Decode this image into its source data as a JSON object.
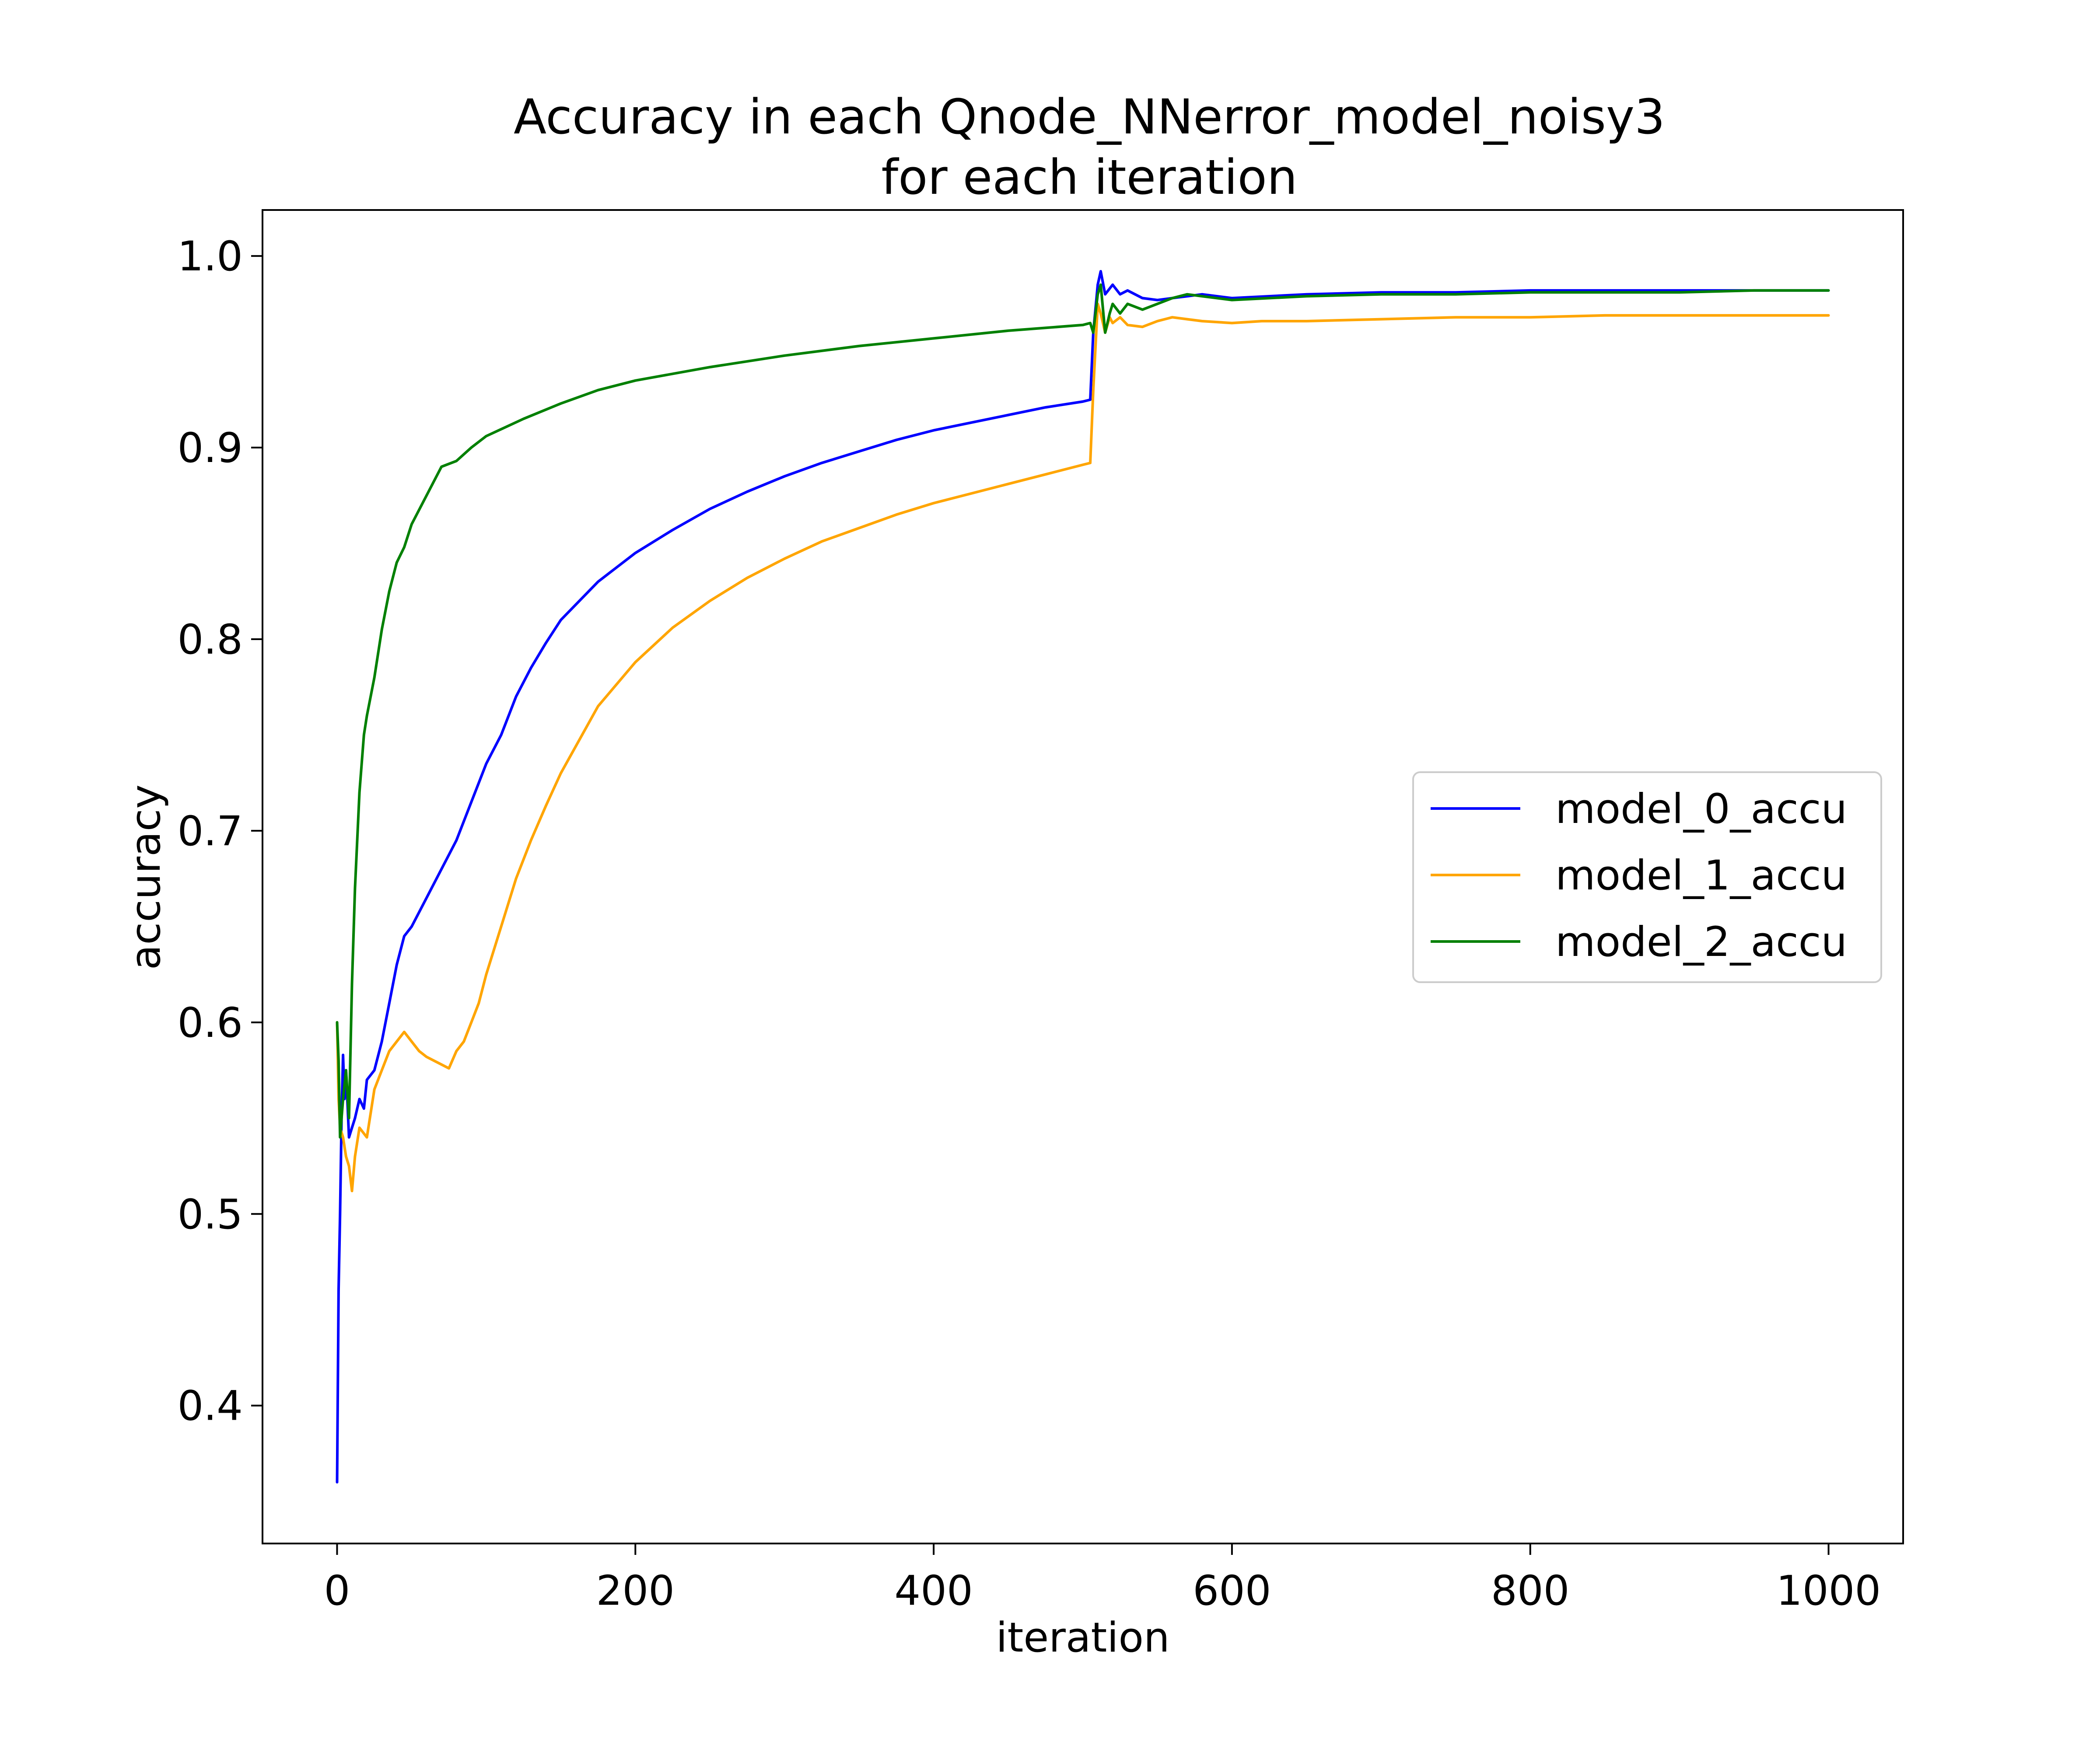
{
  "chart_data": {
    "type": "line",
    "title": [
      "Accuracy in each Qnode_NNerror_model_noisy3",
      "for each iteration"
    ],
    "xlabel": "iteration",
    "ylabel": "accuracy",
    "xlim": [
      -50,
      1050
    ],
    "ylim": [
      0.328,
      1.024
    ],
    "xticks": [
      0,
      200,
      400,
      600,
      800,
      1000
    ],
    "yticks": [
      0.4,
      0.5,
      0.6,
      0.7,
      0.8,
      0.9,
      1.0
    ],
    "xtick_labels": [
      "0",
      "200",
      "400",
      "600",
      "800",
      "1000"
    ],
    "ytick_labels": [
      "0.4",
      "0.5",
      "0.6",
      "0.7",
      "0.8",
      "0.9",
      "1.0"
    ],
    "grid": false,
    "legend_position": "center-right",
    "series": [
      {
        "name": "model_0_accu",
        "color": "#0000ff",
        "points": [
          [
            0,
            0.36
          ],
          [
            1,
            0.46
          ],
          [
            2,
            0.5
          ],
          [
            3,
            0.55
          ],
          [
            4,
            0.583
          ],
          [
            5,
            0.56
          ],
          [
            6,
            0.575
          ],
          [
            8,
            0.54
          ],
          [
            10,
            0.545
          ],
          [
            12,
            0.55
          ],
          [
            15,
            0.56
          ],
          [
            18,
            0.555
          ],
          [
            20,
            0.57
          ],
          [
            25,
            0.575
          ],
          [
            30,
            0.59
          ],
          [
            35,
            0.61
          ],
          [
            40,
            0.63
          ],
          [
            45,
            0.645
          ],
          [
            50,
            0.65
          ],
          [
            60,
            0.665
          ],
          [
            70,
            0.68
          ],
          [
            80,
            0.695
          ],
          [
            90,
            0.715
          ],
          [
            100,
            0.735
          ],
          [
            110,
            0.75
          ],
          [
            120,
            0.77
          ],
          [
            130,
            0.785
          ],
          [
            140,
            0.798
          ],
          [
            150,
            0.81
          ],
          [
            175,
            0.83
          ],
          [
            200,
            0.845
          ],
          [
            225,
            0.857
          ],
          [
            250,
            0.868
          ],
          [
            275,
            0.877
          ],
          [
            300,
            0.885
          ],
          [
            325,
            0.892
          ],
          [
            350,
            0.898
          ],
          [
            375,
            0.904
          ],
          [
            400,
            0.909
          ],
          [
            425,
            0.913
          ],
          [
            450,
            0.917
          ],
          [
            475,
            0.921
          ],
          [
            500,
            0.924
          ],
          [
            505,
            0.925
          ],
          [
            507,
            0.96
          ],
          [
            510,
            0.985
          ],
          [
            512,
            0.992
          ],
          [
            515,
            0.98
          ],
          [
            520,
            0.985
          ],
          [
            525,
            0.98
          ],
          [
            530,
            0.982
          ],
          [
            540,
            0.978
          ],
          [
            550,
            0.977
          ],
          [
            560,
            0.978
          ],
          [
            570,
            0.979
          ],
          [
            580,
            0.98
          ],
          [
            600,
            0.978
          ],
          [
            650,
            0.98
          ],
          [
            700,
            0.981
          ],
          [
            750,
            0.981
          ],
          [
            800,
            0.982
          ],
          [
            850,
            0.982
          ],
          [
            900,
            0.982
          ],
          [
            950,
            0.982
          ],
          [
            1000,
            0.982
          ]
        ]
      },
      {
        "name": "model_1_accu",
        "color": "#ffa500",
        "points": [
          [
            0,
            0.6
          ],
          [
            1,
            0.56
          ],
          [
            2,
            0.545
          ],
          [
            4,
            0.54
          ],
          [
            6,
            0.53
          ],
          [
            8,
            0.525
          ],
          [
            10,
            0.512
          ],
          [
            12,
            0.53
          ],
          [
            15,
            0.545
          ],
          [
            20,
            0.54
          ],
          [
            25,
            0.565
          ],
          [
            30,
            0.575
          ],
          [
            35,
            0.585
          ],
          [
            40,
            0.59
          ],
          [
            45,
            0.595
          ],
          [
            50,
            0.59
          ],
          [
            55,
            0.585
          ],
          [
            60,
            0.582
          ],
          [
            65,
            0.58
          ],
          [
            70,
            0.578
          ],
          [
            75,
            0.576
          ],
          [
            80,
            0.585
          ],
          [
            85,
            0.59
          ],
          [
            90,
            0.6
          ],
          [
            95,
            0.61
          ],
          [
            100,
            0.625
          ],
          [
            110,
            0.65
          ],
          [
            120,
            0.675
          ],
          [
            130,
            0.695
          ],
          [
            140,
            0.713
          ],
          [
            150,
            0.73
          ],
          [
            175,
            0.765
          ],
          [
            200,
            0.788
          ],
          [
            225,
            0.806
          ],
          [
            250,
            0.82
          ],
          [
            275,
            0.832
          ],
          [
            300,
            0.842
          ],
          [
            325,
            0.851
          ],
          [
            350,
            0.858
          ],
          [
            375,
            0.865
          ],
          [
            400,
            0.871
          ],
          [
            425,
            0.876
          ],
          [
            450,
            0.881
          ],
          [
            475,
            0.886
          ],
          [
            500,
            0.891
          ],
          [
            505,
            0.892
          ],
          [
            507,
            0.93
          ],
          [
            510,
            0.975
          ],
          [
            512,
            0.97
          ],
          [
            515,
            0.96
          ],
          [
            518,
            0.968
          ],
          [
            520,
            0.965
          ],
          [
            525,
            0.968
          ],
          [
            530,
            0.964
          ],
          [
            540,
            0.963
          ],
          [
            550,
            0.966
          ],
          [
            560,
            0.968
          ],
          [
            570,
            0.967
          ],
          [
            580,
            0.966
          ],
          [
            600,
            0.965
          ],
          [
            620,
            0.966
          ],
          [
            650,
            0.966
          ],
          [
            700,
            0.967
          ],
          [
            750,
            0.968
          ],
          [
            800,
            0.968
          ],
          [
            850,
            0.969
          ],
          [
            900,
            0.969
          ],
          [
            950,
            0.969
          ],
          [
            1000,
            0.969
          ]
        ]
      },
      {
        "name": "model_2_accu",
        "color": "#008000",
        "points": [
          [
            0,
            0.6
          ],
          [
            1,
            0.58
          ],
          [
            2,
            0.54
          ],
          [
            4,
            0.56
          ],
          [
            6,
            0.575
          ],
          [
            8,
            0.55
          ],
          [
            10,
            0.62
          ],
          [
            12,
            0.67
          ],
          [
            15,
            0.72
          ],
          [
            18,
            0.75
          ],
          [
            20,
            0.76
          ],
          [
            25,
            0.78
          ],
          [
            30,
            0.805
          ],
          [
            35,
            0.825
          ],
          [
            40,
            0.84
          ],
          [
            45,
            0.848
          ],
          [
            50,
            0.86
          ],
          [
            60,
            0.875
          ],
          [
            70,
            0.89
          ],
          [
            80,
            0.893
          ],
          [
            90,
            0.9
          ],
          [
            100,
            0.906
          ],
          [
            125,
            0.915
          ],
          [
            150,
            0.923
          ],
          [
            175,
            0.93
          ],
          [
            200,
            0.935
          ],
          [
            250,
            0.942
          ],
          [
            300,
            0.948
          ],
          [
            350,
            0.953
          ],
          [
            400,
            0.957
          ],
          [
            450,
            0.961
          ],
          [
            500,
            0.964
          ],
          [
            505,
            0.965
          ],
          [
            507,
            0.96
          ],
          [
            510,
            0.98
          ],
          [
            512,
            0.985
          ],
          [
            515,
            0.96
          ],
          [
            518,
            0.97
          ],
          [
            520,
            0.975
          ],
          [
            525,
            0.97
          ],
          [
            530,
            0.975
          ],
          [
            540,
            0.972
          ],
          [
            550,
            0.975
          ],
          [
            560,
            0.978
          ],
          [
            570,
            0.98
          ],
          [
            580,
            0.979
          ],
          [
            600,
            0.977
          ],
          [
            650,
            0.979
          ],
          [
            700,
            0.98
          ],
          [
            750,
            0.98
          ],
          [
            800,
            0.981
          ],
          [
            850,
            0.981
          ],
          [
            900,
            0.981
          ],
          [
            950,
            0.982
          ],
          [
            1000,
            0.982
          ]
        ]
      }
    ]
  }
}
